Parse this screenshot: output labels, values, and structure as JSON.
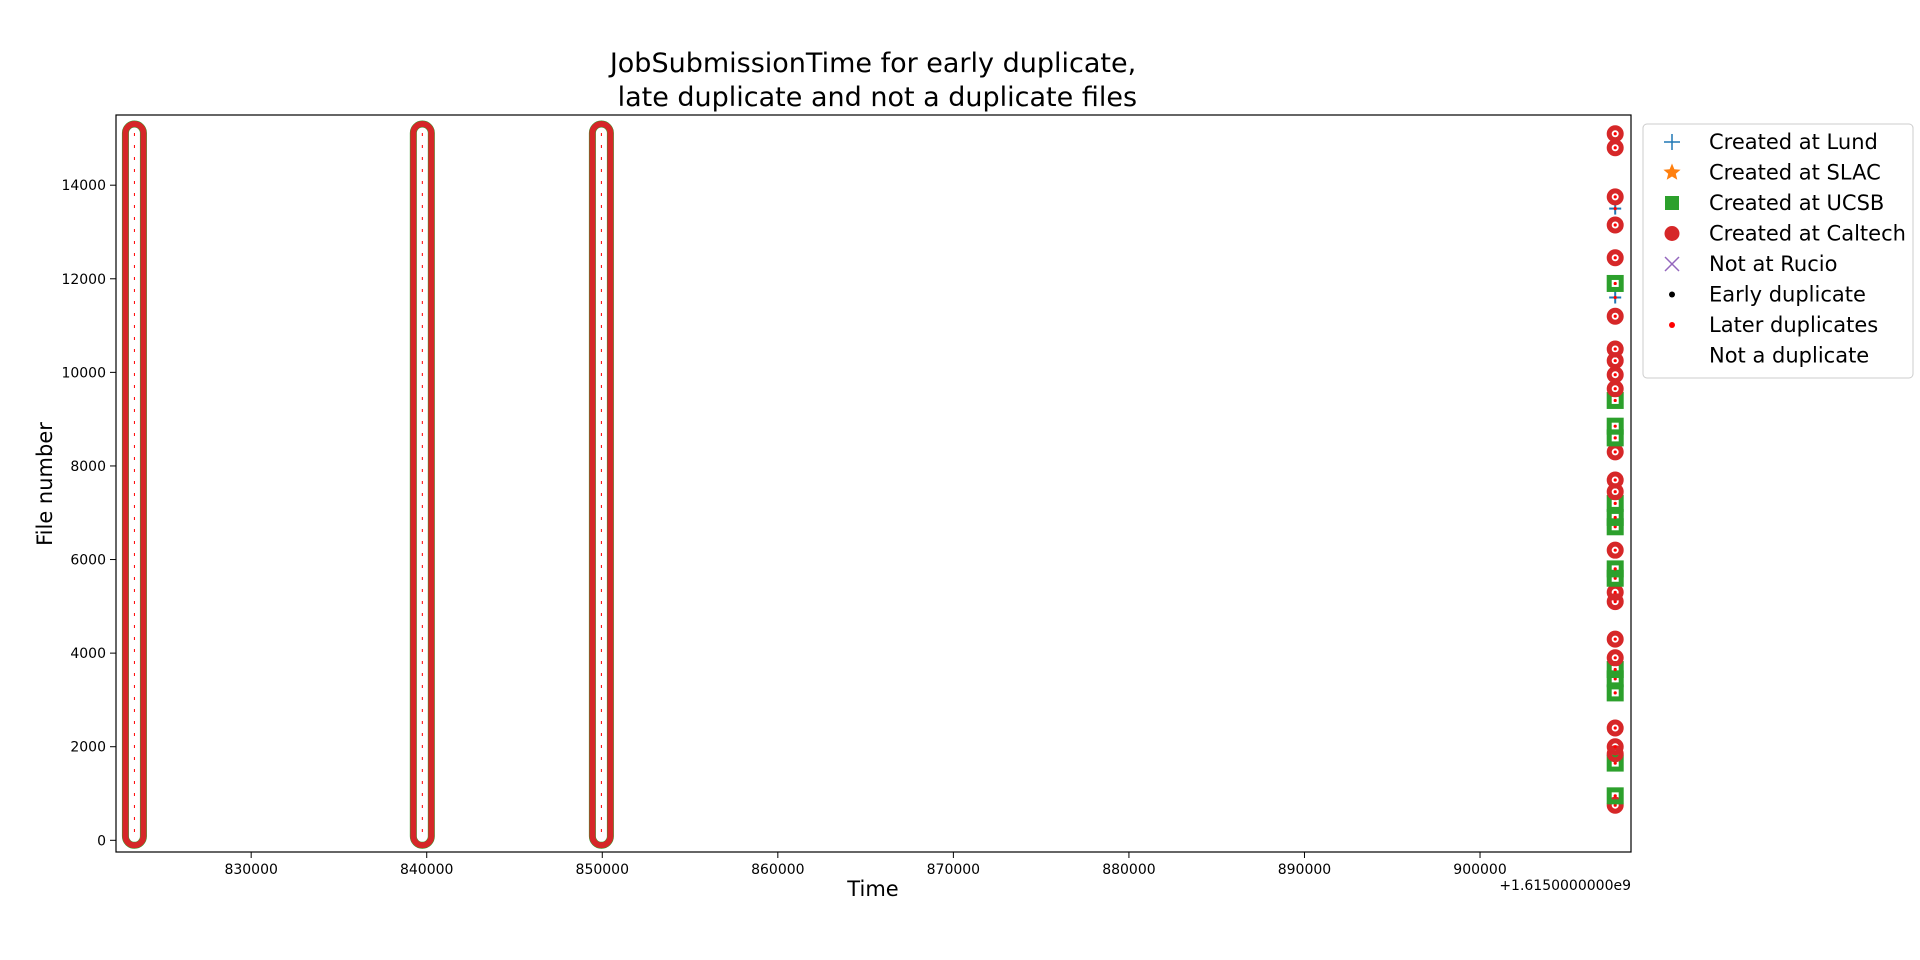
{
  "chart_data": {
    "type": "scatter",
    "title_line1": "JobSubmissionTime for early duplicate,",
    "title_line2": " late duplicate and not a duplicate files",
    "xlabel": "Time",
    "ylabel": "File number",
    "x_offset_label": "+1.6150000000e9",
    "x_offset": 1615000000,
    "xlim": [
      822300,
      908600
    ],
    "ylim": [
      -250,
      15500
    ],
    "x_ticks": [
      830000,
      840000,
      850000,
      860000,
      870000,
      880000,
      890000,
      900000
    ],
    "x_tick_labels": [
      "830000",
      "840000",
      "850000",
      "860000",
      "870000",
      "880000",
      "890000",
      "900000"
    ],
    "y_ticks": [
      0,
      2000,
      4000,
      6000,
      8000,
      10000,
      12000,
      14000
    ],
    "y_tick_labels": [
      "0",
      "2000",
      "4000",
      "6000",
      "8000",
      "10000",
      "12000",
      "14000"
    ],
    "grid": false,
    "legend_placement": "outside-right-top",
    "legend": [
      {
        "label": "Created at Lund",
        "marker": "plus",
        "color": "#1f77b4"
      },
      {
        "label": "Created at SLAC",
        "marker": "star",
        "color": "#ff7f0e"
      },
      {
        "label": "Created at UCSB",
        "marker": "square",
        "color": "#2ca02c"
      },
      {
        "label": "Created at Caltech",
        "marker": "circle",
        "color": "#d62728"
      },
      {
        "label": "Not at Rucio",
        "marker": "x",
        "color": "#9467bd"
      },
      {
        "label": "Early duplicate",
        "marker": "dot",
        "color": "#000000"
      },
      {
        "label": "Later duplicates",
        "marker": "dot",
        "color": "#ff0000"
      },
      {
        "label": "Not a duplicate",
        "marker": "none",
        "color": "#ffffff"
      }
    ],
    "series": [
      {
        "x": 823350,
        "y_range": [
          0,
          15200
        ],
        "site_color": "#d62728",
        "notes": "dense column, mostly Caltech with UCSB at ends"
      },
      {
        "x": 839750,
        "y_range": [
          0,
          15200
        ],
        "site_color": "#d62728"
      },
      {
        "x": 849950,
        "y_range": [
          0,
          15200
        ],
        "site_color": "#d62728"
      },
      {
        "x": 907700,
        "points": [
          {
            "y": 750,
            "c": "#d62728"
          },
          {
            "y": 950,
            "c": "#2ca02c"
          },
          {
            "y": 1650,
            "c": "#2ca02c"
          },
          {
            "y": 1850,
            "c": "#d62728"
          },
          {
            "y": 2000,
            "c": "#d62728"
          },
          {
            "y": 2400,
            "c": "#d62728"
          },
          {
            "y": 3150,
            "c": "#2ca02c"
          },
          {
            "y": 3450,
            "c": "#2ca02c"
          },
          {
            "y": 3650,
            "c": "#2ca02c"
          },
          {
            "y": 3900,
            "c": "#d62728"
          },
          {
            "y": 4300,
            "c": "#d62728"
          },
          {
            "y": 5100,
            "c": "#d62728"
          },
          {
            "y": 5300,
            "c": "#d62728"
          },
          {
            "y": 5600,
            "c": "#2ca02c"
          },
          {
            "y": 5800,
            "c": "#2ca02c"
          },
          {
            "y": 6200,
            "c": "#d62728"
          },
          {
            "y": 6700,
            "c": "#2ca02c"
          },
          {
            "y": 6900,
            "c": "#2ca02c"
          },
          {
            "y": 7200,
            "c": "#2ca02c"
          },
          {
            "y": 7450,
            "c": "#d62728"
          },
          {
            "y": 7700,
            "c": "#d62728"
          },
          {
            "y": 8300,
            "c": "#d62728"
          },
          {
            "y": 8600,
            "c": "#2ca02c"
          },
          {
            "y": 8850,
            "c": "#2ca02c"
          },
          {
            "y": 9400,
            "c": "#2ca02c"
          },
          {
            "y": 9650,
            "c": "#d62728"
          },
          {
            "y": 9950,
            "c": "#d62728"
          },
          {
            "y": 10250,
            "c": "#d62728"
          },
          {
            "y": 10500,
            "c": "#d62728"
          },
          {
            "y": 11200,
            "c": "#d62728"
          },
          {
            "y": 11600,
            "c": "#1f77b4"
          },
          {
            "y": 11900,
            "c": "#2ca02c"
          },
          {
            "y": 12450,
            "c": "#d62728"
          },
          {
            "y": 13150,
            "c": "#d62728"
          },
          {
            "y": 13500,
            "c": "#1f77b4"
          },
          {
            "y": 13750,
            "c": "#d62728"
          },
          {
            "y": 14800,
            "c": "#d62728"
          },
          {
            "y": 15100,
            "c": "#d62728"
          }
        ]
      }
    ]
  }
}
